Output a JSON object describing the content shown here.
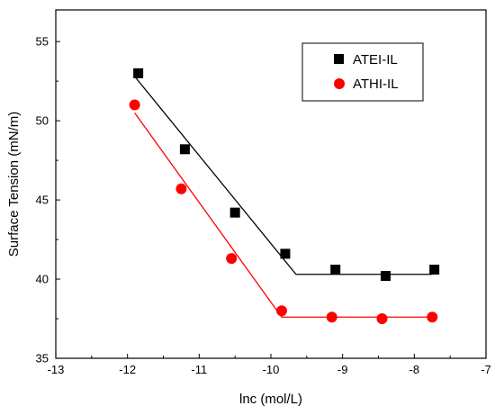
{
  "chart_data": {
    "type": "scatter",
    "title": "",
    "xlabel": "lnc (mol/L)",
    "ylabel": "Surface Tension (mN/m)",
    "xlim": [
      -13,
      -7
    ],
    "ylim": [
      35,
      57
    ],
    "xticks": [
      -13,
      -12,
      -11,
      -10,
      -9,
      -8,
      -7
    ],
    "yticks": [
      35,
      40,
      45,
      50,
      55
    ],
    "grid": false,
    "legend_position": "top-right",
    "series": [
      {
        "name": "ATEI-IL",
        "marker": "square",
        "color": "#000000",
        "x": [
          -11.85,
          -11.2,
          -10.5,
          -9.8,
          -9.1,
          -8.4,
          -7.72
        ],
        "y": [
          53.0,
          48.2,
          44.2,
          41.6,
          40.6,
          40.2,
          40.6
        ],
        "fit_line": {
          "x": [
            -11.9,
            -9.65,
            -7.75
          ],
          "y": [
            52.8,
            40.3,
            40.3
          ]
        }
      },
      {
        "name": "ATHI-IL",
        "marker": "circle",
        "color": "#ff0000",
        "x": [
          -11.9,
          -11.25,
          -10.55,
          -9.85,
          -9.15,
          -8.45,
          -7.75
        ],
        "y": [
          51.0,
          45.7,
          41.3,
          38.0,
          37.6,
          37.5,
          37.6
        ],
        "fit_line": {
          "x": [
            -11.9,
            -9.85,
            -7.75
          ],
          "y": [
            50.5,
            37.6,
            37.6
          ]
        }
      }
    ]
  }
}
